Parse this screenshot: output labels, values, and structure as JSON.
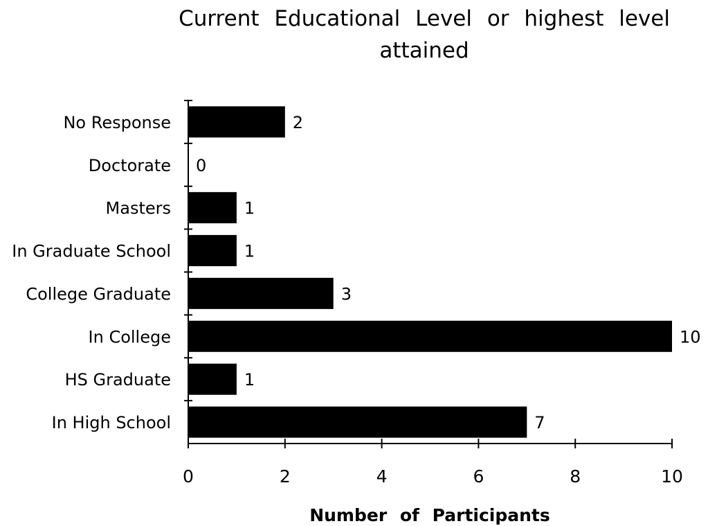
{
  "chart_data": {
    "type": "bar",
    "orientation": "horizontal",
    "title": "Current Educational Level or highest level attained",
    "xlabel": "Number of Participants",
    "ylabel": "",
    "categories": [
      "No Response",
      "Doctorate",
      "Masters",
      "In Graduate School",
      "College Graduate",
      "In College",
      "HS Graduate",
      "In High School"
    ],
    "values": [
      2,
      0,
      1,
      1,
      3,
      10,
      1,
      7
    ],
    "data_labels": [
      "2",
      "0",
      "1",
      "1",
      "3",
      "10",
      "1",
      "7"
    ],
    "xlim": [
      0,
      10
    ],
    "x_ticks": [
      0,
      2,
      4,
      6,
      8,
      10
    ],
    "x_tick_labels": [
      "0",
      "2",
      "4",
      "6",
      "8",
      "10"
    ],
    "grid": false,
    "legend": "none",
    "bar_color": "#000000"
  }
}
